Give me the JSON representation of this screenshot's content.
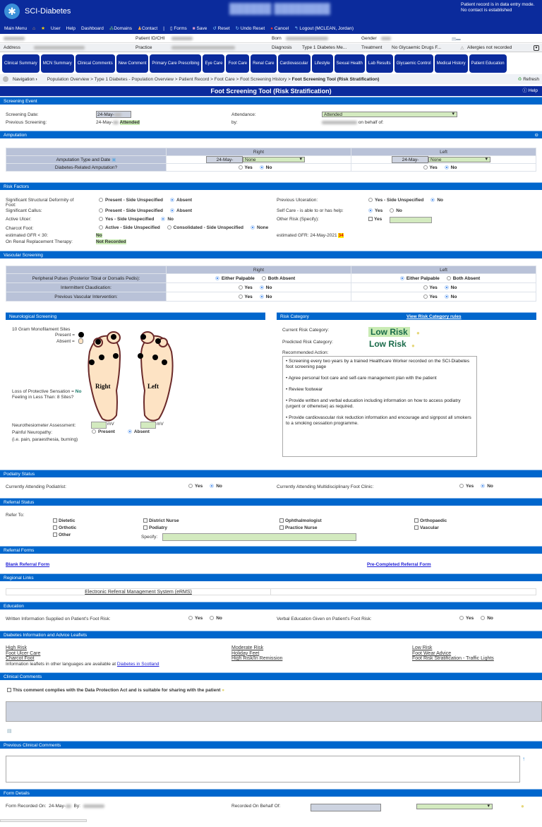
{
  "header": {
    "app_name": "SCI-Diabetes",
    "status_line1": "Patient record is in data entry mode.",
    "status_line2": "No contact is established"
  },
  "toolbar": {
    "main_menu": "Main Menu",
    "user": "User",
    "help": "Help",
    "dashboard": "Dashboard",
    "domains": "Domains",
    "contact": "Contact",
    "forms": "Forms",
    "save": "Save",
    "reset": "Reset",
    "undo_reset": "Undo Reset",
    "cancel": "Cancel",
    "logout": "Logout (MCLEAN, Jordan)"
  },
  "patient": {
    "id_label": "Patient ID/CHI",
    "born_label": "Born",
    "gender_label": "Gender",
    "address_label": "Address",
    "practice_label": "Practice",
    "diagnosis_label": "Diagnosis",
    "diagnosis": "Type 1 Diabetes Me...",
    "treatment_label": "Treatment",
    "treatment": "No Glycaemic Drugs F...",
    "allergies": "Allergies not recorded"
  },
  "tabs": [
    "Clinical Summary",
    "MCN Summary",
    "Clinical Comments",
    "New Comment",
    "Primary Care Prescribing",
    "Eye Care",
    "Foot Care",
    "Renal Care",
    "Cardiovascular",
    "Lifestyle",
    "Sexual Health",
    "Lab Results",
    "Glycaemic Control",
    "Medical History",
    "Patient Education"
  ],
  "nav": {
    "label": "Navigation",
    "breadcrumb": "Population Overview > Type 1 Diabetes - Population Overview > Patient Record > Foot Care > Foot Screening History > ",
    "current": "Foot Screening Tool (Risk Stratification)",
    "refresh": "Refresh"
  },
  "page": {
    "title": "Foot Screening Tool (Risk Stratification)",
    "help": "Help"
  },
  "screening": {
    "header": "Screening Event",
    "date_label": "Screening Date:",
    "date": "24-May-",
    "previous_label": "Previous Screening:",
    "previous_date": "24-May-",
    "previous_status": "Attended",
    "attendance_label": "Attendance:",
    "attendance": "Attended",
    "by_label": "by:",
    "on_behalf": "on behalf of:"
  },
  "amputation": {
    "header": "Amputation",
    "right": "Right",
    "left": "Left",
    "type_label": "Amputation Type and Date",
    "related_label": "Diabetes-Related Amputation?",
    "right_date": "24-May-",
    "left_date": "24-May-",
    "right_type": "None",
    "left_type": "None",
    "yes": "Yes",
    "no": "No"
  },
  "risk": {
    "header": "Risk Factors",
    "deformity": "Significant Structural Deformity of Foot:",
    "callus": "Significant Callus:",
    "ulcer": "Active Ulcer:",
    "charcot": "Charcot Foot:",
    "gfr30": "estimated GFR < 30:",
    "gfr30_val": "No",
    "rrt": "On Renal Replacement Therapy:",
    "rrt_val": "Not Recorded",
    "present_unspec": "Present - Side Unspecified",
    "absent": "Absent",
    "yes_unspec": "Yes - Side Unspecified",
    "no": "No",
    "yes": "Yes",
    "active_unspec": "Active - Side Unspecified",
    "consolidated_unspec": "Consolidated - Side Unspecified",
    "none": "None",
    "prev_ulcer": "Previous Ulceration:",
    "self_care": "Self Care - is able to or has help:",
    "other_risk": "Other Risk (Specify):",
    "gfr_label": "estimated GFR:",
    "gfr_date": "24-May-2021",
    "gfr_value": "34"
  },
  "vascular": {
    "header": "Vascular Screening",
    "right": "Right",
    "left": "Left",
    "pulses": "Peripheral Pulses (Posterior Tibial or Dorsalis Pedis):",
    "claudication": "Intermittent Claudication:",
    "intervention": "Previous Vascular Intervention:",
    "either": "Either Palpable",
    "both_absent": "Both Absent",
    "yes": "Yes",
    "no": "No"
  },
  "neuro": {
    "header": "Neurological Screening",
    "monofilament": "10 Gram Monofilament Sites",
    "present": "Present =",
    "absent": "Absent =",
    "right": "Right",
    "left": "Left",
    "lops": "Loss of Protective Sensation =",
    "lops_val": "No",
    "feeling": "Feeling in Less Than:   8 Sites?",
    "neuro_label": "Neurothesiometer Assessment:",
    "mv": "mV",
    "painful": "Painful Neuropathy:",
    "painful_hint": "(i.e. pain, paraesthesia, burning)",
    "present_opt": "Present",
    "absent_opt": "Absent"
  },
  "risk_category": {
    "header": "Risk Category",
    "rules_link": "View Risk Category rules",
    "current_label": "Current Risk Category:",
    "current": "Low Risk",
    "predicted_label": "Predicted Risk Category:",
    "predicted": "Low Risk",
    "action_label": "Recommended Action:",
    "actions": [
      "• Screening every two years by a trained Healthcare Worker recorded on the SCI-Diabetes foot screening page",
      "• Agree personal foot care and self-care management plan with the patient",
      "• Review footwear",
      "• Provide written and verbal education including information on how to access podiatry (urgent or otherwise) as required.",
      "• Provide cardiovascular risk reduction information and encourage and signpost all smokers to a smoking cessation programme."
    ],
    "risk_color": "#1a6b4a"
  },
  "podiatry": {
    "header": "Podiatry Status",
    "podiatrist": "Currently Attending Podiatrist:",
    "clinic": "Currently Attending Multidisciplinary Foot Clinic:",
    "yes": "Yes",
    "no": "No"
  },
  "referral": {
    "header": "Referral Status",
    "refer_to": "Refer To:",
    "options": [
      "Dietetic",
      "District Nurse",
      "Ophthalmologist",
      "Orthopaedic",
      "Orthotic",
      "Podiatry",
      "Practice Nurse",
      "Vascular",
      "Other"
    ],
    "specify": "Specify:"
  },
  "referral_forms": {
    "header": "Referral Forms",
    "blank": "Blank Referral Form",
    "precompleted": "Pre-Completed Referral Form"
  },
  "regional": {
    "header": "Regional Links",
    "erms": "Electronic Referral Management System (eRMS)"
  },
  "education": {
    "header": "Education",
    "written": "Written Information Supplied on Patient's Foot Risk:",
    "verbal": "Verbal Education Given on Patient's Foot Risk:",
    "yes": "Yes",
    "no": "No"
  },
  "leaflets": {
    "header": "Diabetes Information and Advice Leaflets",
    "col1": [
      "High Risk",
      "Foot Ulcer Care",
      "Charcot Foot"
    ],
    "col2": [
      "Moderate Risk",
      "Holiday Feet",
      "High Risk/In Remission"
    ],
    "col3": [
      "Low Risk",
      "Foot Wear Advice",
      "Foot Risk Stratification - Traffic Lights"
    ],
    "languages": "Information leaflets in other languages are available at ",
    "languages_link": "Diabetes in Scotland"
  },
  "comments": {
    "header": "Clinical Comments",
    "dpa": "This comment complies with the Data Protection Act and is suitable for sharing with the patient"
  },
  "previous_comments": {
    "header": "Previous Clinical Comments"
  },
  "form_details": {
    "header": "Form Details",
    "recorded_on": "Form Recorded On:",
    "date": "24-May-",
    "by": "By:",
    "behalf": "Recorded On Behalf Of:"
  },
  "colors": {
    "header_blue": "#0b2b9c",
    "section_blue": "#0066cc",
    "input_green": "#d3eabf",
    "gfr_highlight": "#ffee00"
  }
}
